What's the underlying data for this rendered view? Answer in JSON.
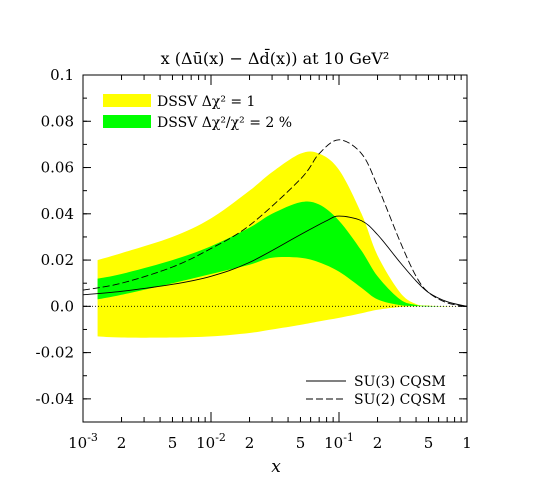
{
  "chart_data": {
    "type": "area",
    "title": "x (Δū(x) − Δd̄(x)) at 10 GeV²",
    "xlabel": "x",
    "ylabel": "",
    "x_scale": "log",
    "xlim": [
      0.001,
      1
    ],
    "ylim": [
      -0.05,
      0.1
    ],
    "y_ticks": [
      -0.04,
      -0.02,
      0.0,
      0.02,
      0.04,
      0.06,
      0.08,
      0.1
    ],
    "y_tick_labels": [
      "-0.04",
      "-0.02",
      "0.0",
      "0.02",
      "0.04",
      "0.06",
      "0.08",
      "0.1"
    ],
    "x_major_ticks": [
      {
        "x": 0.001,
        "base": "10",
        "exp": "-3"
      },
      {
        "x": 0.01,
        "base": "10",
        "exp": "-2"
      },
      {
        "x": 0.1,
        "base": "10",
        "exp": "-1"
      },
      {
        "x": 1,
        "base": "1",
        "exp": ""
      }
    ],
    "x_minor_labeled": [
      {
        "x": 0.002,
        "label": "2"
      },
      {
        "x": 0.005,
        "label": "5"
      },
      {
        "x": 0.02,
        "label": "2"
      },
      {
        "x": 0.05,
        "label": "5"
      },
      {
        "x": 0.2,
        "label": "2"
      },
      {
        "x": 0.5,
        "label": "5"
      }
    ],
    "grid": false,
    "bands": [
      {
        "name": "DSSV Δχ² = 1",
        "color": "#ffff00",
        "x": [
          0.0013,
          0.002,
          0.005,
          0.01,
          0.02,
          0.03,
          0.05,
          0.07,
          0.1,
          0.15,
          0.2,
          0.3,
          0.4,
          0.5,
          0.7,
          1.0
        ],
        "upper": [
          0.02,
          0.023,
          0.03,
          0.038,
          0.05,
          0.058,
          0.066,
          0.066,
          0.059,
          0.04,
          0.022,
          0.006,
          0.001,
          0.0003,
          0.0001,
          0.0
        ],
        "lower": [
          -0.013,
          -0.0135,
          -0.0135,
          -0.013,
          -0.0115,
          -0.01,
          -0.008,
          -0.0065,
          -0.005,
          -0.003,
          -0.0015,
          -0.0003,
          0.0,
          0.0,
          0.0,
          0.0
        ]
      },
      {
        "name": "DSSV Δχ²/χ² = 2 %",
        "color": "#00ff00",
        "x": [
          0.0013,
          0.002,
          0.005,
          0.01,
          0.02,
          0.03,
          0.05,
          0.07,
          0.1,
          0.15,
          0.2,
          0.3,
          0.4,
          0.5,
          0.7,
          1.0
        ],
        "upper": [
          0.012,
          0.014,
          0.02,
          0.026,
          0.034,
          0.04,
          0.045,
          0.044,
          0.037,
          0.024,
          0.013,
          0.003,
          0.0006,
          0.0002,
          0.0,
          0.0
        ],
        "lower": [
          0.003,
          0.005,
          0.01,
          0.014,
          0.018,
          0.021,
          0.021,
          0.019,
          0.015,
          0.008,
          0.003,
          0.0005,
          0.0001,
          0.0,
          0.0,
          0.0
        ]
      }
    ],
    "series": [
      {
        "name": "SU(3) CQSM",
        "style": "solid",
        "x": [
          0.001,
          0.002,
          0.005,
          0.01,
          0.02,
          0.05,
          0.08,
          0.1,
          0.15,
          0.2,
          0.3,
          0.4,
          0.5,
          0.7,
          1.0
        ],
        "y": [
          0.005,
          0.0065,
          0.0095,
          0.013,
          0.019,
          0.031,
          0.037,
          0.039,
          0.037,
          0.031,
          0.019,
          0.011,
          0.006,
          0.002,
          0.0
        ]
      },
      {
        "name": "SU(2) CQSM",
        "style": "dashed",
        "x": [
          0.001,
          0.002,
          0.005,
          0.01,
          0.02,
          0.05,
          0.07,
          0.1,
          0.15,
          0.2,
          0.3,
          0.4,
          0.5,
          0.7,
          1.0
        ],
        "y": [
          0.007,
          0.01,
          0.017,
          0.025,
          0.035,
          0.055,
          0.066,
          0.072,
          0.066,
          0.052,
          0.028,
          0.013,
          0.006,
          0.0015,
          0.0
        ]
      }
    ],
    "zero_line": {
      "style": "dotted",
      "y": 0
    },
    "legend_top": [
      {
        "label": "DSSV Δχ² = 1",
        "color": "#ffff00"
      },
      {
        "label": "DSSV Δχ²/χ² = 2 %",
        "color": "#00ff00"
      }
    ],
    "legend_bottom": [
      {
        "label": "SU(3) CQSM",
        "style": "solid"
      },
      {
        "label": "SU(2) CQSM",
        "style": "dashed"
      }
    ]
  }
}
